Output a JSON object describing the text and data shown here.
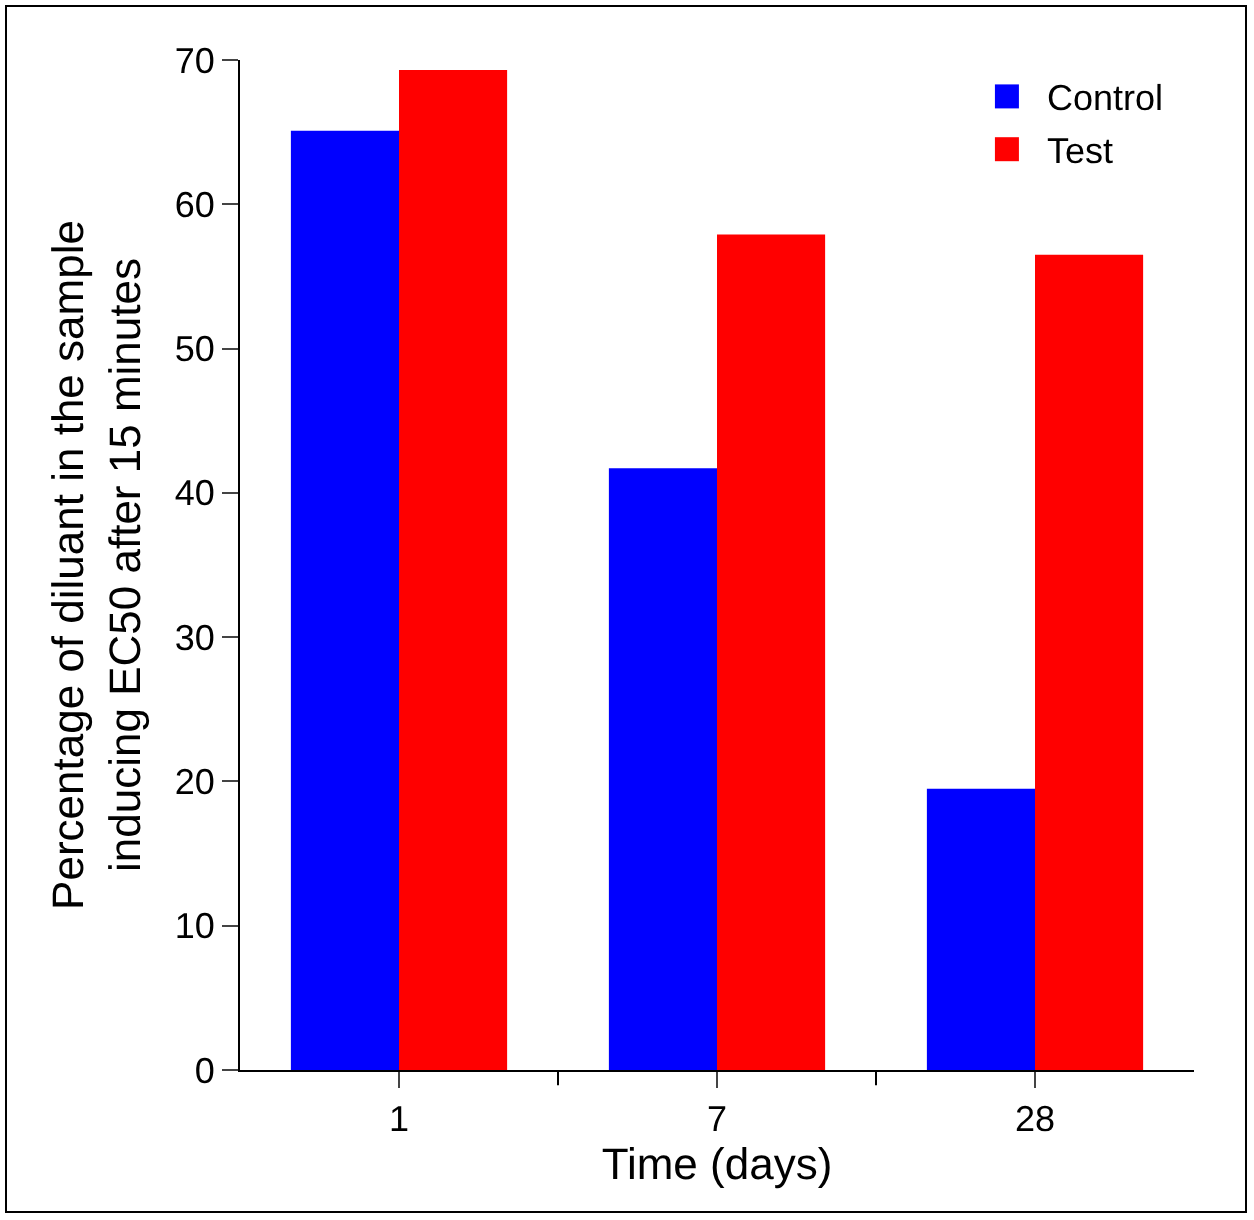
{
  "chart_data": {
    "type": "bar",
    "xlabel": "Time (days)",
    "ylabel": "Percentage of diluant in the sample\ninducing EC50 after 15 minutes",
    "categories": [
      "1",
      "7",
      "28"
    ],
    "series": [
      {
        "name": "Control",
        "color": "#0000ff",
        "values": [
          65.1,
          41.7,
          19.5
        ]
      },
      {
        "name": "Test",
        "color": "#ff0000",
        "values": [
          69.3,
          57.9,
          56.5
        ]
      }
    ],
    "ylim": [
      0,
      70
    ],
    "yticks": [
      0,
      10,
      20,
      30,
      40,
      50,
      60,
      70
    ],
    "legend": "top right"
  }
}
